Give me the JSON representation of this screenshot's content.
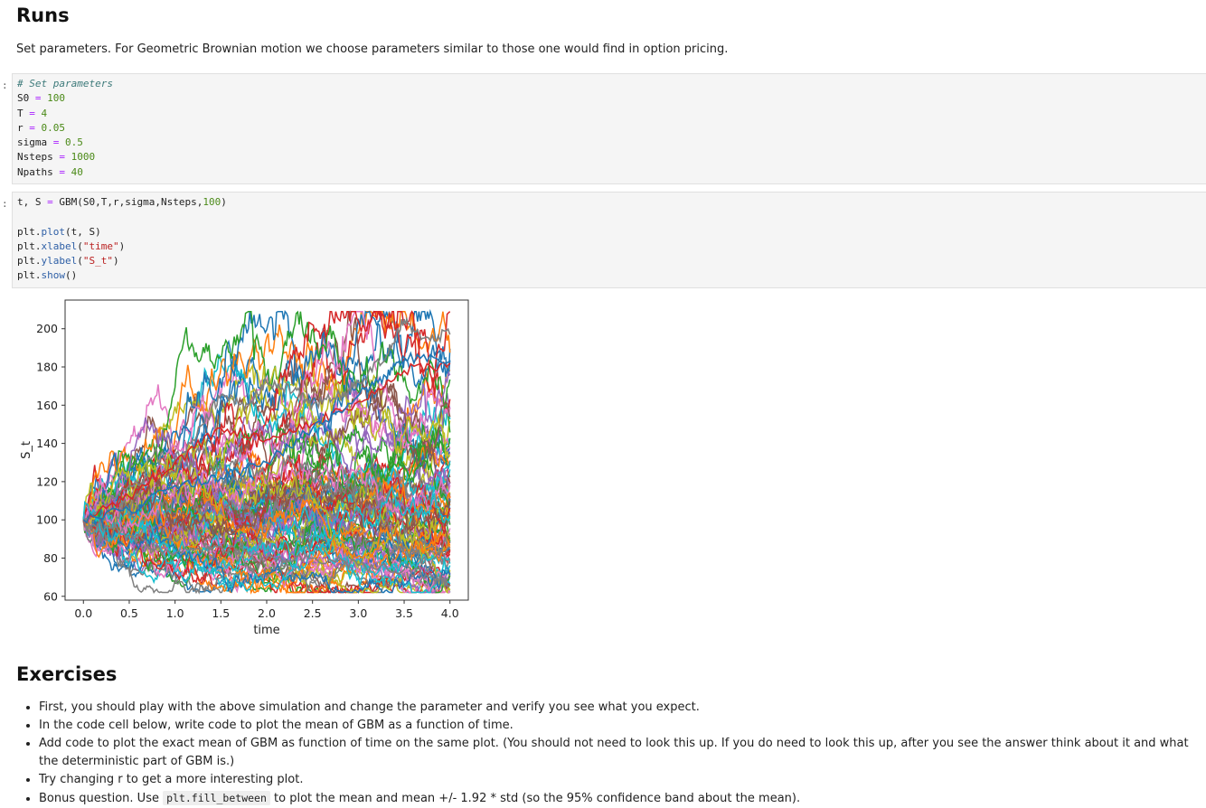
{
  "headings": {
    "runs": "Runs",
    "exercises": "Exercises"
  },
  "intro": "Set parameters. For Geometric Brownian motion we choose parameters similar to those one would find in option pricing.",
  "prompts": {
    "cell1": ":",
    "cell2": ":"
  },
  "cell1": {
    "comment": "# Set parameters",
    "lines": [
      {
        "name": "S0",
        "value": "100"
      },
      {
        "name": "T",
        "value": "4"
      },
      {
        "name": "r",
        "value": "0.05"
      },
      {
        "name": "sigma",
        "value": "0.5"
      },
      {
        "name": "Nsteps",
        "value": "1000"
      },
      {
        "name": "Npaths",
        "value": "40"
      }
    ]
  },
  "cell2": {
    "line1_a": "t, S ",
    "line1_op": "=",
    "line1_b": " GBM(S0,T,r,sigma,Nsteps,",
    "line1_num": "100",
    "line1_c": ")",
    "plt": "plt.",
    "plot_fn": "plot",
    "plot_args": "(t, S)",
    "xlabel_fn": "xlabel",
    "xlabel_arg": "\"time\"",
    "ylabel_fn": "ylabel",
    "ylabel_arg": "\"S_t\"",
    "show_fn": "show",
    "show_args": "()"
  },
  "chart_data": {
    "type": "line",
    "xlabel": "time",
    "ylabel": "S_t",
    "xlim": [
      -0.2,
      4.2
    ],
    "ylim": [
      58,
      215
    ],
    "xticks": [
      "0.0",
      "0.5",
      "1.0",
      "1.5",
      "2.0",
      "2.5",
      "3.0",
      "3.5",
      "4.0"
    ],
    "yticks": [
      "60",
      "80",
      "100",
      "120",
      "140",
      "160",
      "180",
      "200"
    ],
    "start_value": 100,
    "n_paths": 100,
    "note_series": "simulated GBM paths, S0=100, T=4, r=0.05, sigma=0.5; approximate end values range 66–197",
    "highlight_paths": [
      {
        "x": [
          0,
          0.5,
          1.0,
          1.3,
          1.5,
          1.8,
          2.0,
          2.3,
          2.5,
          2.8,
          3.0,
          3.3,
          3.5,
          3.7,
          4.0
        ],
        "y": [
          100,
          118,
          125,
          150,
          165,
          160,
          172,
          168,
          160,
          165,
          172,
          185,
          205,
          195,
          197
        ],
        "color": "#7f7f7f"
      },
      {
        "x": [
          0,
          0.5,
          1.0,
          1.5,
          2.0,
          2.5,
          3.0,
          3.5,
          3.8,
          4.0
        ],
        "y": [
          100,
          92,
          82,
          86,
          80,
          80,
          76,
          74,
          70,
          66
        ],
        "color": "#7f7f7f"
      },
      {
        "x": [
          0,
          0.5,
          1.0,
          1.5,
          2.0,
          2.5,
          3.0,
          3.5,
          4.0
        ],
        "y": [
          100,
          112,
          130,
          148,
          142,
          150,
          162,
          178,
          182
        ],
        "color": "#d62728"
      },
      {
        "x": [
          0,
          0.5,
          1.0,
          1.5,
          2.0,
          2.5,
          3.0,
          3.3,
          3.5,
          4.0
        ],
        "y": [
          100,
          105,
          118,
          122,
          130,
          148,
          165,
          175,
          185,
          183
        ],
        "color": "#1f77b4"
      }
    ],
    "palette": [
      "#1f77b4",
      "#ff7f0e",
      "#2ca02c",
      "#d62728",
      "#9467bd",
      "#8c564b",
      "#e377c2",
      "#7f7f7f",
      "#bcbd22",
      "#17becf"
    ]
  },
  "exercises": {
    "items": [
      "First, you should play with the above simulation and change the parameter and verify you see what you expect.",
      "In the code cell below, write code to plot the mean of GBM as a function of time.",
      "Add code to plot the exact mean of GBM as function of time on the same plot. (You should not need to look this up. If you do need to look this up, after you see the answer think about it and what the deterministic part of GBM is.)",
      "Try changing r to get a more interesting plot."
    ],
    "bonus_pre": "Bonus question. Use ",
    "bonus_code": "plt.fill_between",
    "bonus_post": " to plot the mean and mean +/- 1.92 * std (so the 95% confidence band about the mean)."
  }
}
